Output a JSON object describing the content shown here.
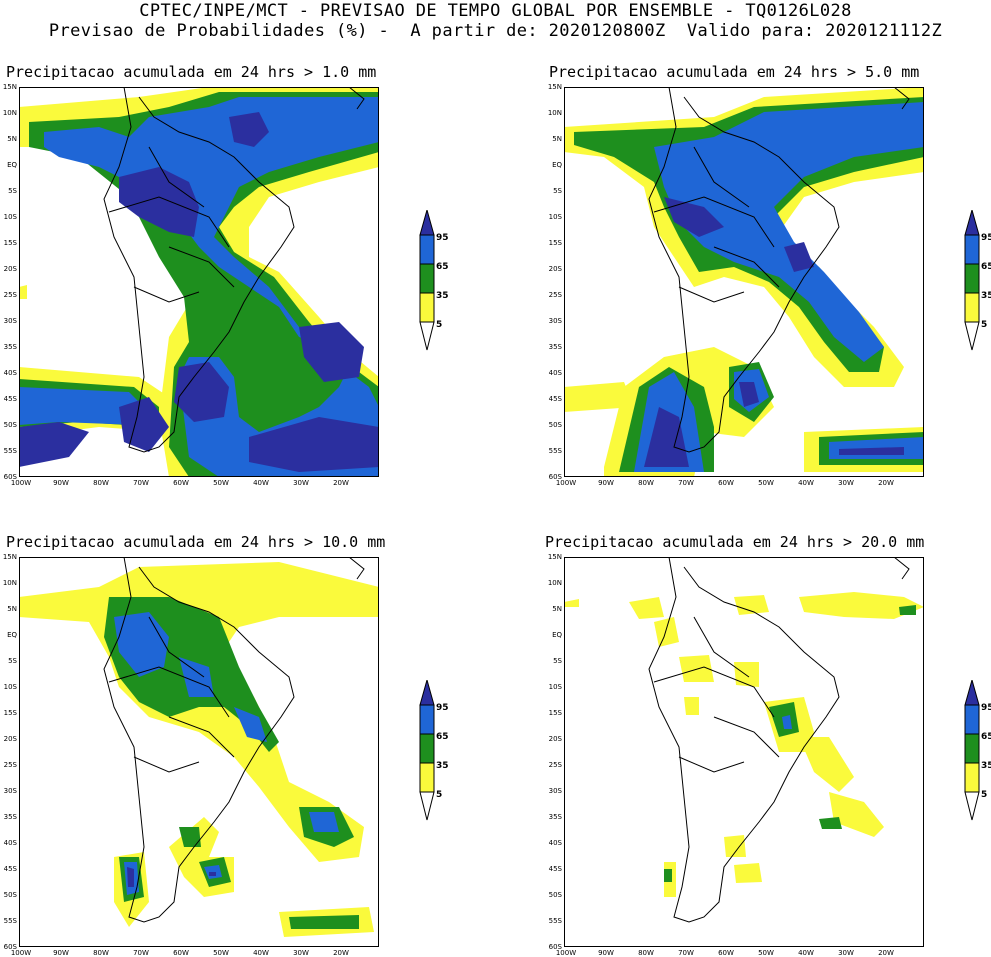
{
  "header": {
    "line1": "CPTEC/INPE/MCT - PREVISAO DE TEMPO GLOBAL POR ENSEMBLE - TQ0126L028",
    "line2": "Previsao de Probabilidades (%) -  A partir de: 2020120800Z  Valido para: 2020121112Z"
  },
  "panels": [
    {
      "title": "Precipitacao acumulada em 24 hrs > 1.0 mm"
    },
    {
      "title": "Precipitacao acumulada em 24 hrs > 5.0 mm"
    },
    {
      "title": "Precipitacao acumulada em 24 hrs > 10.0 mm"
    },
    {
      "title": "Precipitacao acumulada em 24 hrs > 20.0 mm"
    }
  ],
  "lat_labels": [
    "15N",
    "10N",
    "5N",
    "EQ",
    "5S",
    "10S",
    "15S",
    "20S",
    "25S",
    "30S",
    "35S",
    "40S",
    "45S",
    "50S",
    "55S",
    "60S"
  ],
  "lon_labels": [
    "100W",
    "90W",
    "80W",
    "70W",
    "60W",
    "50W",
    "40W",
    "30W",
    "20W"
  ],
  "colorbar": {
    "labels": [
      "95",
      "65",
      "35",
      "5"
    ],
    "colors": {
      "c95": "#2b2f9f",
      "c65": "#1f66d6",
      "c35": "#1e8f1e",
      "c5": "#fafa3c"
    }
  }
}
